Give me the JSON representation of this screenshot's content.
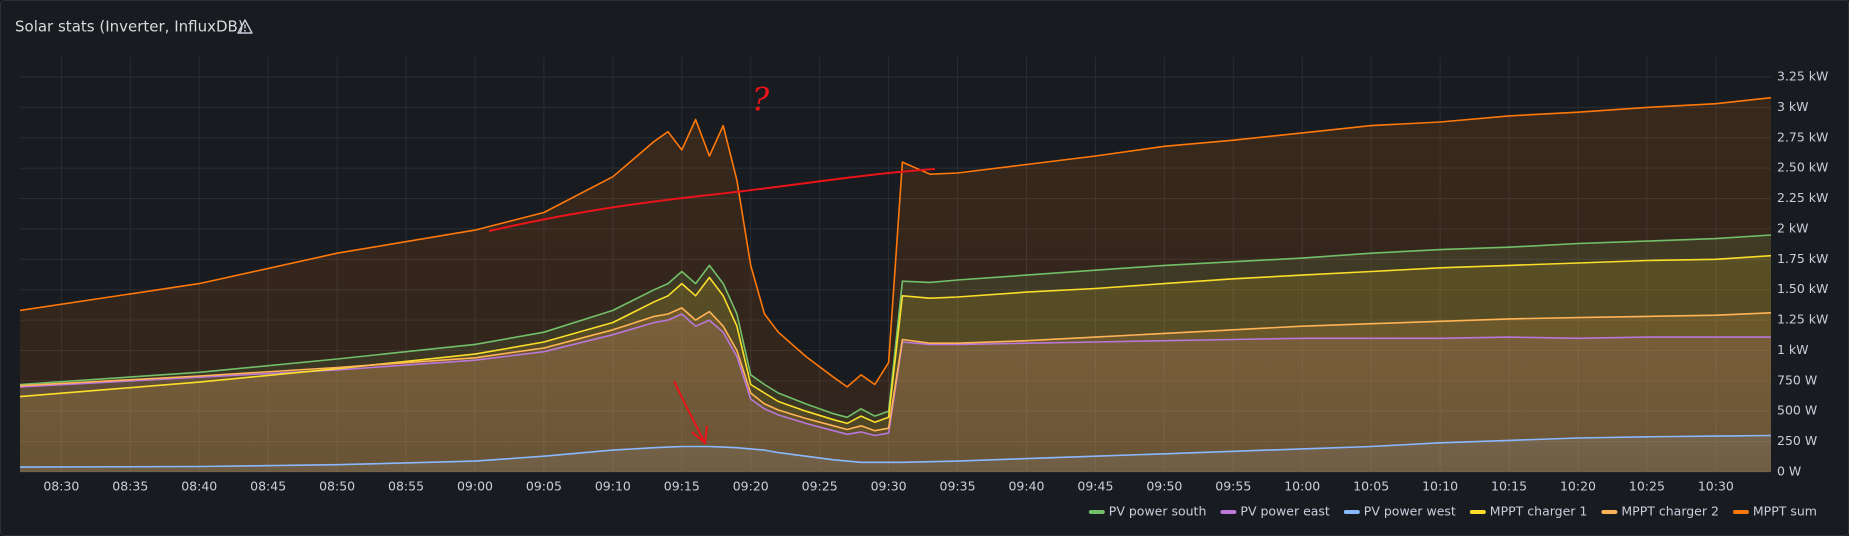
{
  "chart_data": {
    "type": "line",
    "title": "Solar stats (Inverter, InfluxDB)",
    "annotation": "?",
    "x": [
      "08:27",
      "08:40",
      "08:50",
      "09:00",
      "09:05",
      "09:10",
      "09:13",
      "09:14",
      "09:15",
      "09:16",
      "09:17",
      "09:18",
      "09:19",
      "09:20",
      "09:21",
      "09:22",
      "09:24",
      "09:26",
      "09:27",
      "09:28",
      "09:29",
      "09:30",
      "09:31",
      "09:33",
      "09:35",
      "09:40",
      "09:45",
      "09:50",
      "09:55",
      "10:00",
      "10:05",
      "10:10",
      "10:15",
      "10:20",
      "10:25",
      "10:30",
      "10:34"
    ],
    "xlim": [
      "08:27",
      "10:34"
    ],
    "xticks": [
      "08:30",
      "08:35",
      "08:40",
      "08:45",
      "08:50",
      "08:55",
      "09:00",
      "09:05",
      "09:10",
      "09:15",
      "09:20",
      "09:25",
      "09:30",
      "09:35",
      "09:40",
      "09:45",
      "09:50",
      "09:55",
      "10:00",
      "10:05",
      "10:10",
      "10:15",
      "10:20",
      "10:25",
      "10:30"
    ],
    "ylim": [
      0,
      3250
    ],
    "yticks": [
      {
        "value": 0,
        "label": "0 W"
      },
      {
        "value": 250,
        "label": "250 W"
      },
      {
        "value": 500,
        "label": "500 W"
      },
      {
        "value": 750,
        "label": "750 W"
      },
      {
        "value": 1000,
        "label": "1 kW"
      },
      {
        "value": 1250,
        "label": "1.25 kW"
      },
      {
        "value": 1500,
        "label": "1.50 kW"
      },
      {
        "value": 1750,
        "label": "1.75 kW"
      },
      {
        "value": 2000,
        "label": "2 kW"
      },
      {
        "value": 2250,
        "label": "2.25 kW"
      },
      {
        "value": 2500,
        "label": "2.50 kW"
      },
      {
        "value": 2750,
        "label": "2.75 kW"
      },
      {
        "value": 3000,
        "label": "3 kW"
      },
      {
        "value": 3250,
        "label": "3.25 kW"
      }
    ],
    "grid": true,
    "legend": "bottom-right",
    "series": [
      {
        "name": "PV power south",
        "color": "#73bf69",
        "values": [
          720,
          820,
          930,
          1050,
          1150,
          1330,
          1500,
          1550,
          1650,
          1550,
          1700,
          1550,
          1300,
          800,
          720,
          650,
          560,
          480,
          450,
          520,
          460,
          500,
          1570,
          1560,
          1580,
          1620,
          1660,
          1700,
          1730,
          1760,
          1800,
          1830,
          1850,
          1880,
          1900,
          1920,
          1950
        ]
      },
      {
        "name": "PV power east",
        "color": "#b877d9",
        "values": [
          700,
          780,
          840,
          920,
          990,
          1130,
          1230,
          1250,
          1300,
          1200,
          1250,
          1150,
          950,
          600,
          520,
          470,
          400,
          340,
          310,
          330,
          300,
          320,
          1070,
          1050,
          1050,
          1060,
          1070,
          1080,
          1090,
          1100,
          1100,
          1100,
          1110,
          1100,
          1110,
          1110,
          1110
        ]
      },
      {
        "name": "PV power west",
        "color": "#8ab8ff",
        "values": [
          40,
          45,
          60,
          90,
          130,
          180,
          200,
          205,
          210,
          210,
          210,
          205,
          200,
          190,
          180,
          160,
          130,
          100,
          90,
          80,
          80,
          80,
          80,
          85,
          90,
          110,
          130,
          150,
          170,
          190,
          210,
          240,
          260,
          280,
          290,
          295,
          300
        ]
      },
      {
        "name": "MPPT charger 1",
        "color": "#fade2a",
        "values": [
          620,
          740,
          850,
          970,
          1070,
          1230,
          1400,
          1450,
          1550,
          1450,
          1600,
          1450,
          1200,
          720,
          650,
          580,
          500,
          430,
          400,
          460,
          410,
          450,
          1450,
          1430,
          1440,
          1480,
          1510,
          1550,
          1590,
          1620,
          1650,
          1680,
          1700,
          1720,
          1740,
          1750,
          1780
        ]
      },
      {
        "name": "MPPT charger 2",
        "color": "#ffb357",
        "values": [
          710,
          790,
          860,
          940,
          1020,
          1170,
          1280,
          1300,
          1350,
          1250,
          1320,
          1200,
          1000,
          650,
          560,
          510,
          440,
          380,
          350,
          380,
          340,
          360,
          1090,
          1060,
          1060,
          1080,
          1110,
          1140,
          1170,
          1200,
          1220,
          1240,
          1260,
          1270,
          1280,
          1290,
          1310
        ]
      },
      {
        "name": "MPPT sum",
        "color": "#ff780a",
        "values": [
          1330,
          1550,
          1800,
          1990,
          2135,
          2430,
          2720,
          2800,
          2650,
          2900,
          2600,
          2850,
          2400,
          1700,
          1300,
          1150,
          950,
          780,
          700,
          800,
          720,
          900,
          2550,
          2450,
          2460,
          2530,
          2600,
          2680,
          2730,
          2790,
          2850,
          2880,
          2930,
          2960,
          3000,
          3030,
          3080
        ]
      }
    ]
  }
}
